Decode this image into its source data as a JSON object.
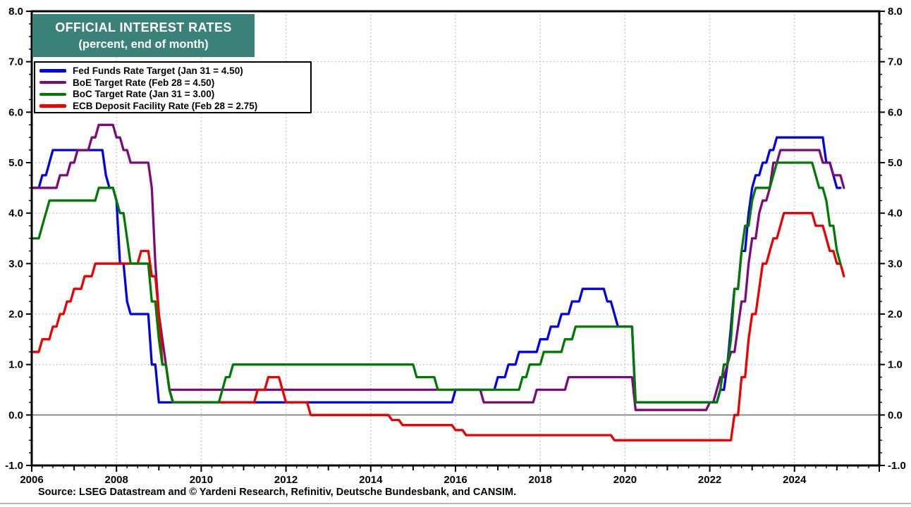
{
  "title": {
    "line1": "OFFICIAL INTEREST RATES",
    "line2": "(percent, end of month)"
  },
  "source": "Source: LSEG Datastream and © Yardeni Research, Refinitiv, Deutsche Bundesbank, and CANSIM.",
  "colors": {
    "title_bg": "#3A8279",
    "title_text": "#ffffff",
    "fed": "#0000EE",
    "boe": "#7D0A7D",
    "boc": "#007A00",
    "ecb": "#EE0000",
    "grid_dotted": "#bbbbbb",
    "zero_line": "#777777",
    "frame": "#000000"
  },
  "chart_data": {
    "type": "line",
    "title": "OFFICIAL INTEREST RATES (percent, end of month)",
    "xlabel": "",
    "ylabel": "percent",
    "legend_position": "top-left",
    "grid": true,
    "x_axis": {
      "min": 2006,
      "max": 2026,
      "label_years": [
        2006,
        2008,
        2010,
        2012,
        2014,
        2016,
        2018,
        2020,
        2022,
        2024
      ],
      "grid_years": [
        2008,
        2010,
        2012,
        2014,
        2016,
        2018,
        2020,
        2022,
        2024
      ],
      "minor_step": 0.25
    },
    "y_axis": {
      "min": -1.0,
      "max": 8.0,
      "major_step": 1.0,
      "minor_step": 0.25,
      "grid_values": [
        1,
        2,
        3,
        4,
        5,
        6,
        7
      ],
      "zero_value": 0.0,
      "tick_label_format": "one_decimal"
    },
    "draw_order": [
      0,
      1,
      3,
      2
    ],
    "series": [
      {
        "name": "Fed Funds Rate Target (Jan 31 = 4.50)",
        "color_key": "fed",
        "end": 2025.083,
        "points": [
          [
            2006.0,
            4.5
          ],
          [
            2006.25,
            4.75
          ],
          [
            2006.417,
            5.0
          ],
          [
            2006.5,
            5.25
          ],
          [
            2007.75,
            4.75
          ],
          [
            2007.833,
            4.5
          ],
          [
            2008.0,
            4.25
          ],
          [
            2008.083,
            3.0
          ],
          [
            2008.25,
            2.25
          ],
          [
            2008.333,
            2.0
          ],
          [
            2008.833,
            1.0
          ],
          [
            2009.0,
            0.25
          ],
          [
            2016.0,
            0.5
          ],
          [
            2017.0,
            0.75
          ],
          [
            2017.25,
            1.0
          ],
          [
            2017.5,
            1.25
          ],
          [
            2018.0,
            1.5
          ],
          [
            2018.25,
            1.75
          ],
          [
            2018.5,
            2.0
          ],
          [
            2018.75,
            2.25
          ],
          [
            2019.0,
            2.5
          ],
          [
            2019.583,
            2.25
          ],
          [
            2019.75,
            2.0
          ],
          [
            2019.833,
            1.75
          ],
          [
            2020.25,
            0.25
          ],
          [
            2022.25,
            0.5
          ],
          [
            2022.417,
            1.0
          ],
          [
            2022.5,
            1.75
          ],
          [
            2022.583,
            2.5
          ],
          [
            2022.75,
            3.25
          ],
          [
            2022.917,
            4.0
          ],
          [
            2023.0,
            4.5
          ],
          [
            2023.083,
            4.75
          ],
          [
            2023.25,
            5.0
          ],
          [
            2023.417,
            5.25
          ],
          [
            2023.583,
            5.5
          ],
          [
            2024.75,
            5.0
          ],
          [
            2024.917,
            4.75
          ],
          [
            2025.0,
            4.5
          ]
        ]
      },
      {
        "name": "BoE Target Rate (Feb 28 = 4.50)",
        "color_key": "boe",
        "end": 2025.167,
        "points": [
          [
            2006.0,
            4.5
          ],
          [
            2006.667,
            4.75
          ],
          [
            2006.917,
            5.0
          ],
          [
            2007.083,
            5.25
          ],
          [
            2007.417,
            5.5
          ],
          [
            2007.583,
            5.75
          ],
          [
            2008.0,
            5.5
          ],
          [
            2008.167,
            5.25
          ],
          [
            2008.333,
            5.0
          ],
          [
            2008.833,
            4.5
          ],
          [
            2008.917,
            3.0
          ],
          [
            2009.0,
            2.0
          ],
          [
            2009.083,
            1.5
          ],
          [
            2009.167,
            1.0
          ],
          [
            2009.25,
            0.5
          ],
          [
            2016.667,
            0.25
          ],
          [
            2017.917,
            0.5
          ],
          [
            2018.667,
            0.75
          ],
          [
            2020.25,
            0.1
          ],
          [
            2022.0,
            0.25
          ],
          [
            2022.167,
            0.5
          ],
          [
            2022.25,
            0.75
          ],
          [
            2022.417,
            1.0
          ],
          [
            2022.5,
            1.25
          ],
          [
            2022.667,
            1.75
          ],
          [
            2022.75,
            2.25
          ],
          [
            2022.917,
            3.0
          ],
          [
            2023.0,
            3.5
          ],
          [
            2023.167,
            4.0
          ],
          [
            2023.25,
            4.25
          ],
          [
            2023.417,
            4.5
          ],
          [
            2023.5,
            5.0
          ],
          [
            2023.667,
            5.25
          ],
          [
            2024.667,
            5.0
          ],
          [
            2024.917,
            4.75
          ],
          [
            2025.167,
            4.5
          ]
        ]
      },
      {
        "name": "BoC Target Rate (Jan 31 = 3.00)",
        "color_key": "boc",
        "end": 2025.083,
        "points": [
          [
            2006.0,
            3.5
          ],
          [
            2006.25,
            3.75
          ],
          [
            2006.333,
            4.0
          ],
          [
            2006.417,
            4.25
          ],
          [
            2007.583,
            4.5
          ],
          [
            2008.0,
            4.25
          ],
          [
            2008.083,
            4.0
          ],
          [
            2008.25,
            3.5
          ],
          [
            2008.333,
            3.0
          ],
          [
            2008.833,
            2.25
          ],
          [
            2009.0,
            1.5
          ],
          [
            2009.083,
            1.0
          ],
          [
            2009.25,
            0.5
          ],
          [
            2009.333,
            0.25
          ],
          [
            2010.5,
            0.5
          ],
          [
            2010.583,
            0.75
          ],
          [
            2010.75,
            1.0
          ],
          [
            2015.083,
            0.75
          ],
          [
            2015.583,
            0.5
          ],
          [
            2017.583,
            0.75
          ],
          [
            2017.75,
            1.0
          ],
          [
            2018.083,
            1.25
          ],
          [
            2018.583,
            1.5
          ],
          [
            2018.833,
            1.75
          ],
          [
            2020.25,
            0.25
          ],
          [
            2022.25,
            0.5
          ],
          [
            2022.333,
            1.0
          ],
          [
            2022.5,
            1.5
          ],
          [
            2022.583,
            2.5
          ],
          [
            2022.75,
            3.25
          ],
          [
            2022.833,
            3.75
          ],
          [
            2023.0,
            4.25
          ],
          [
            2023.083,
            4.5
          ],
          [
            2023.5,
            4.75
          ],
          [
            2023.583,
            5.0
          ],
          [
            2024.5,
            4.75
          ],
          [
            2024.583,
            4.5
          ],
          [
            2024.75,
            4.25
          ],
          [
            2024.833,
            3.75
          ],
          [
            2025.0,
            3.25
          ],
          [
            2025.083,
            3.0
          ]
        ]
      },
      {
        "name": "ECB Deposit Facility Rate (Feb 28 = 2.75)",
        "color_key": "ecb",
        "end": 2025.167,
        "points": [
          [
            2006.0,
            1.25
          ],
          [
            2006.25,
            1.5
          ],
          [
            2006.5,
            1.75
          ],
          [
            2006.667,
            2.0
          ],
          [
            2006.833,
            2.25
          ],
          [
            2007.0,
            2.5
          ],
          [
            2007.25,
            2.75
          ],
          [
            2007.5,
            3.0
          ],
          [
            2008.583,
            3.25
          ],
          [
            2008.833,
            2.75
          ],
          [
            2009.0,
            2.0
          ],
          [
            2009.083,
            1.0
          ],
          [
            2009.25,
            0.5
          ],
          [
            2009.333,
            0.25
          ],
          [
            2011.333,
            0.5
          ],
          [
            2011.583,
            0.75
          ],
          [
            2011.917,
            0.5
          ],
          [
            2012.0,
            0.25
          ],
          [
            2012.583,
            0.0
          ],
          [
            2014.5,
            -0.1
          ],
          [
            2014.75,
            -0.2
          ],
          [
            2016.0,
            -0.3
          ],
          [
            2016.25,
            -0.4
          ],
          [
            2019.75,
            -0.5
          ],
          [
            2022.583,
            0.0
          ],
          [
            2022.75,
            0.75
          ],
          [
            2022.917,
            1.5
          ],
          [
            2023.0,
            2.0
          ],
          [
            2023.167,
            2.5
          ],
          [
            2023.25,
            3.0
          ],
          [
            2023.417,
            3.25
          ],
          [
            2023.5,
            3.5
          ],
          [
            2023.667,
            3.75
          ],
          [
            2023.75,
            4.0
          ],
          [
            2024.5,
            3.75
          ],
          [
            2024.75,
            3.5
          ],
          [
            2024.833,
            3.25
          ],
          [
            2025.0,
            3.0
          ],
          [
            2025.167,
            2.75
          ]
        ]
      }
    ]
  }
}
